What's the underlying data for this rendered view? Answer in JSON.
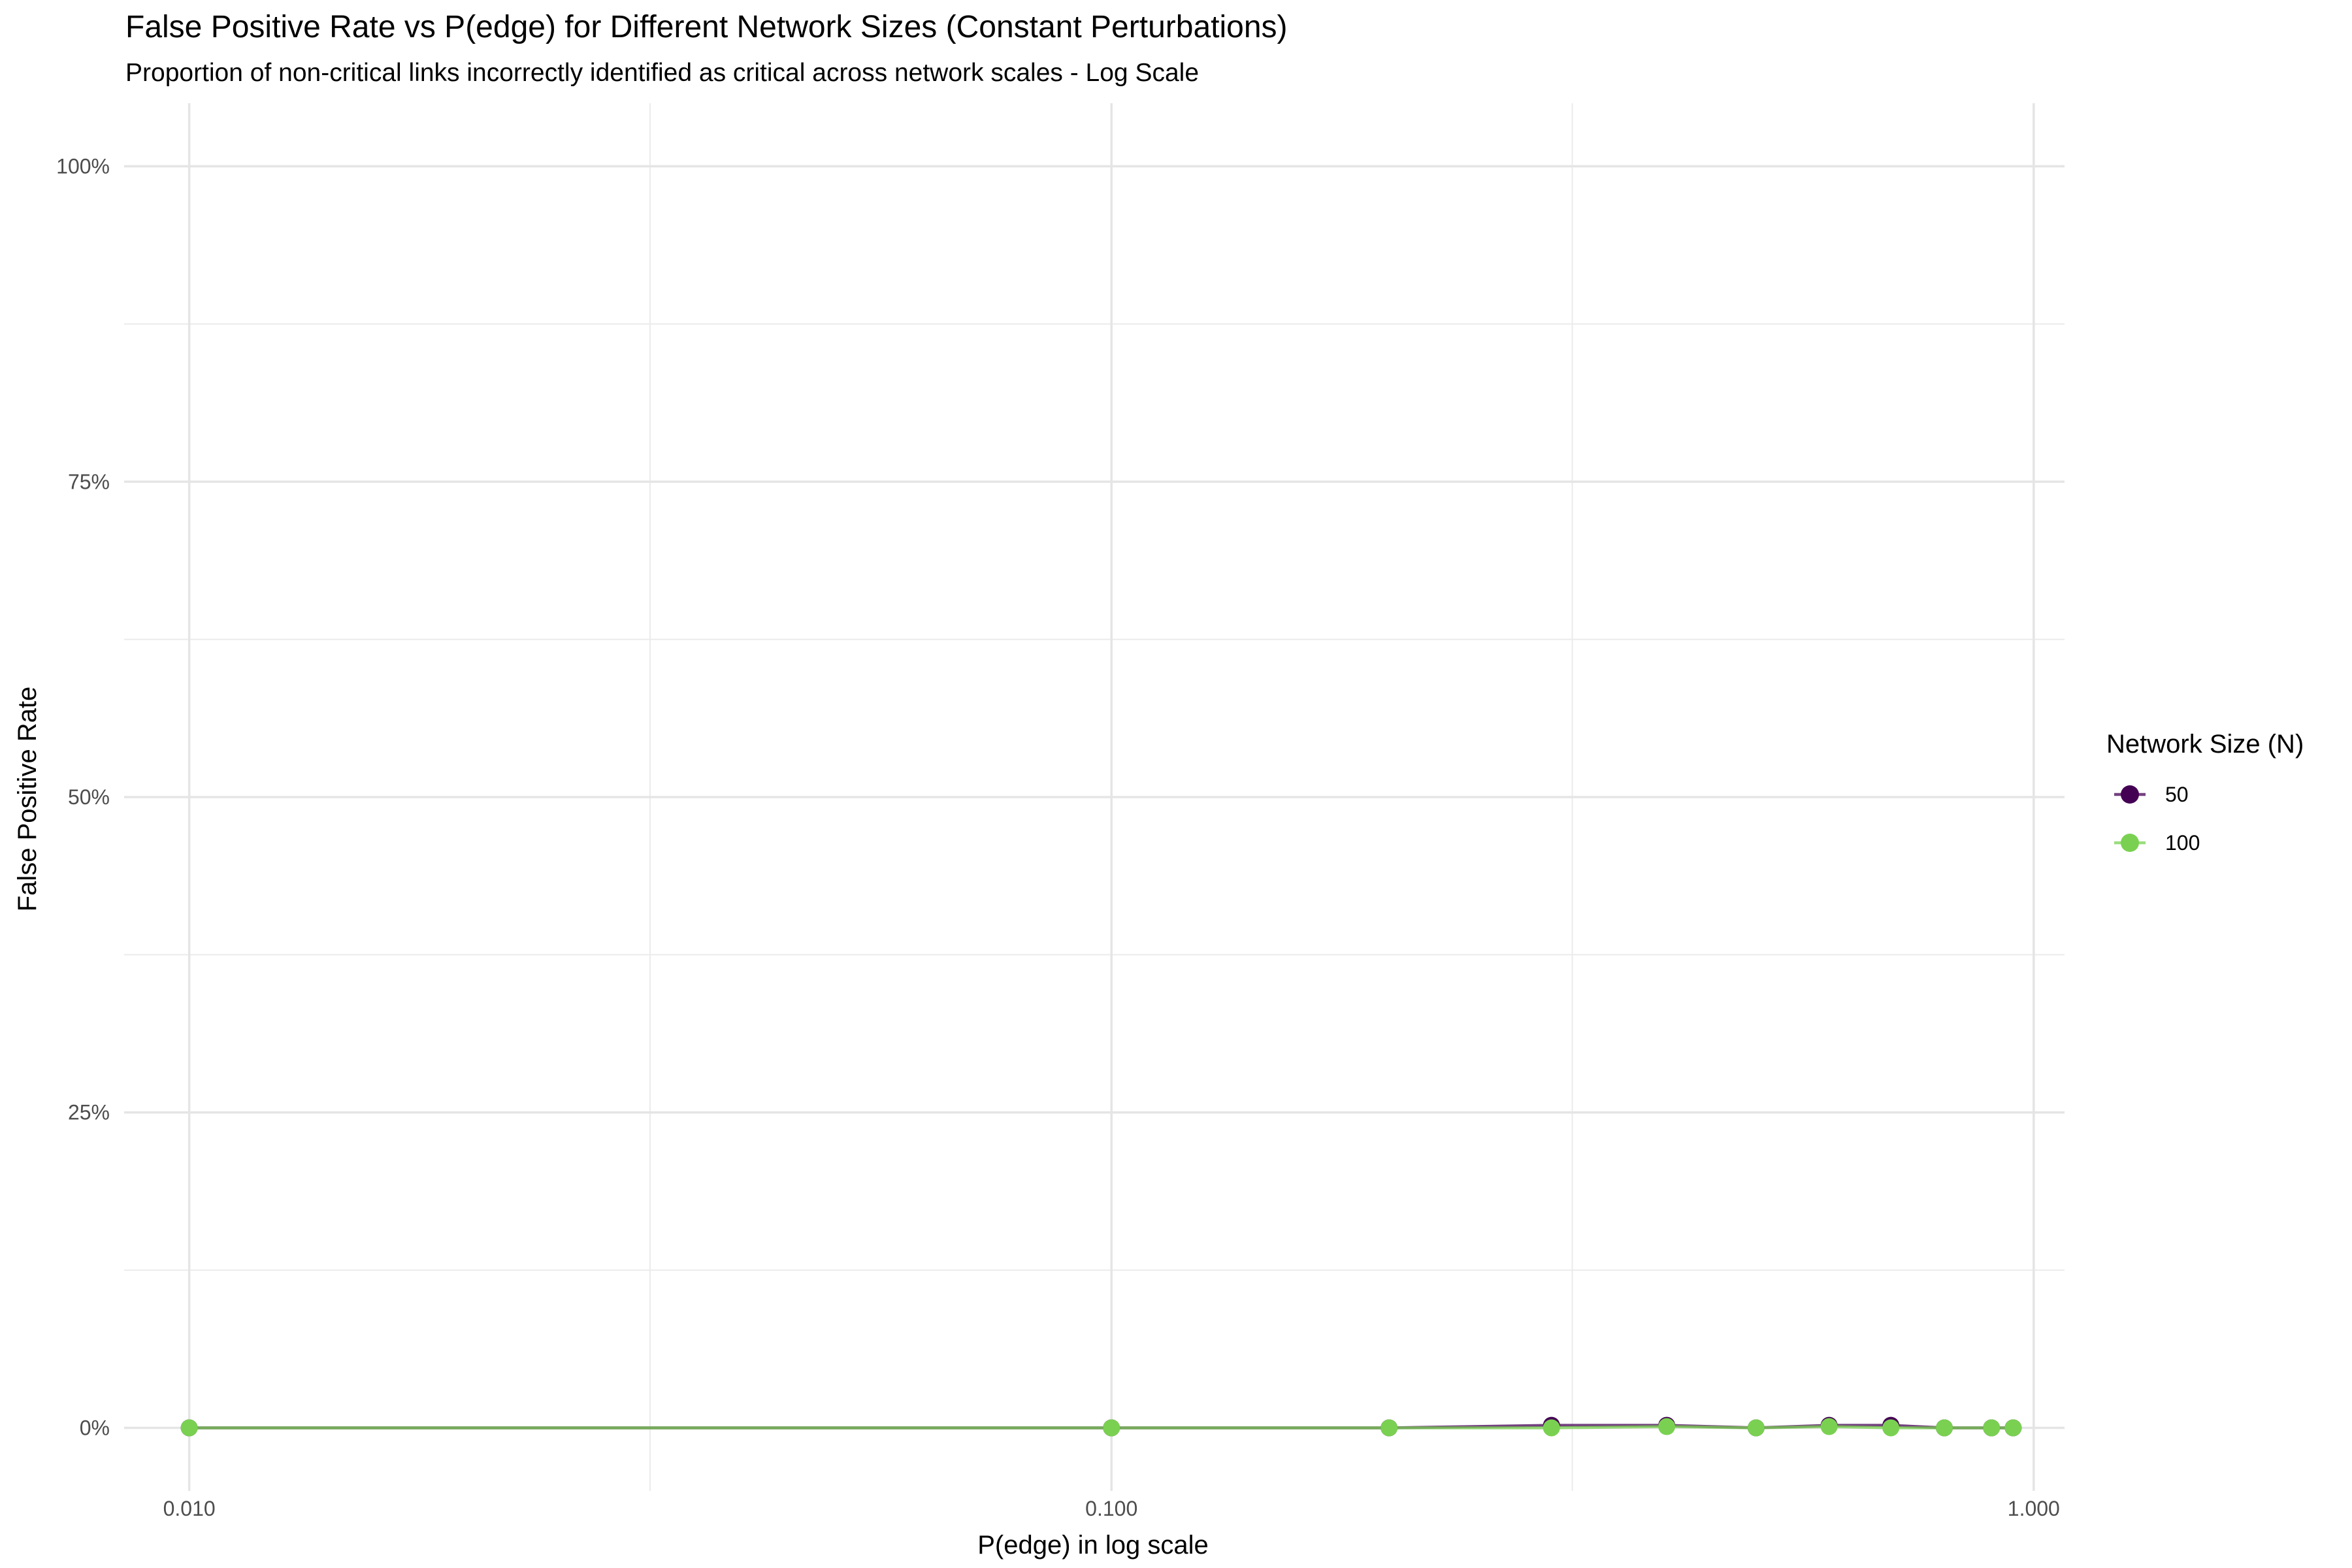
{
  "chart_data": {
    "type": "line",
    "title": "False Positive Rate vs P(edge) for Different Network Sizes (Constant Perturbations)",
    "subtitle": "Proportion of non-critical links incorrectly identified as critical across network scales - Log Scale",
    "xlabel": "P(edge) in log scale",
    "ylabel": "False Positive Rate",
    "x_scale": "log",
    "xlim": [
      0.0085,
      1.08
    ],
    "ylim": [
      -0.05,
      1.05
    ],
    "x_ticks": [
      0.01,
      0.1,
      1.0
    ],
    "x_tick_labels": [
      "0.010",
      "0.100",
      "1.000"
    ],
    "x_minor_ticks": [
      0.0316,
      0.316
    ],
    "y_ticks": [
      0,
      0.25,
      0.5,
      0.75,
      1.0
    ],
    "y_tick_labels": [
      "0%",
      "25%",
      "50%",
      "75%",
      "100%"
    ],
    "y_minor_ticks": [
      0.125,
      0.375,
      0.625,
      0.875
    ],
    "grid": true,
    "legend": {
      "title": "Network Size (N)",
      "position": "right"
    },
    "series": [
      {
        "name": "50",
        "color": "#440154",
        "x": [
          0.01,
          0.1,
          0.2,
          0.3,
          0.4,
          0.5,
          0.6,
          0.7,
          0.8,
          0.9,
          0.95
        ],
        "y": [
          0.0,
          0.0,
          0.0,
          0.002,
          0.002,
          0.0,
          0.002,
          0.002,
          0.0,
          0.0,
          0.0
        ]
      },
      {
        "name": "100",
        "color": "#7AD151",
        "x": [
          0.01,
          0.1,
          0.2,
          0.3,
          0.4,
          0.5,
          0.6,
          0.7,
          0.8,
          0.9,
          0.95
        ],
        "y": [
          0.0,
          0.0,
          0.0,
          0.0,
          0.001,
          0.0,
          0.001,
          0.0,
          0.0,
          0.0,
          0.0
        ]
      }
    ]
  }
}
